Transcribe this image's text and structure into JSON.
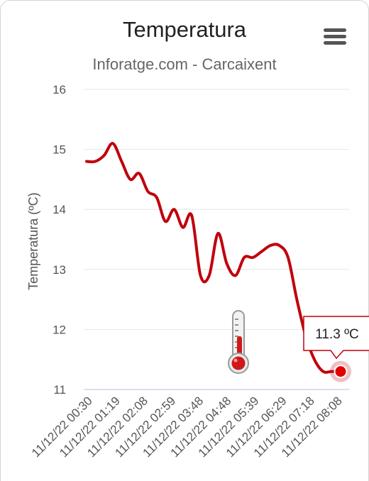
{
  "chart_data": {
    "type": "line",
    "title": "Temperatura",
    "subtitle": "Inforatge.com - Carcaixent",
    "ylabel": "Temperatura (ºC)",
    "xlabel": "",
    "ylim": [
      11,
      16
    ],
    "yticks": [
      "16",
      "15",
      "14",
      "13",
      "12",
      "11"
    ],
    "xticks": [
      "11/12/22 00:30",
      "11/12/22 01:19",
      "11/12/22 02:08",
      "11/12/22 02:59",
      "11/12/22 03:48",
      "11/12/22 04:48",
      "11/12/22 05:39",
      "11/12/22 06:29",
      "11/12/22 07:18",
      "11/12/22 08:08"
    ],
    "grid": true,
    "series": [
      {
        "color": "#c0000c",
        "values": [
          14.8,
          14.8,
          14.9,
          15.1,
          14.8,
          14.5,
          14.6,
          14.3,
          14.2,
          13.8,
          14.0,
          13.7,
          13.9,
          12.9,
          12.9,
          13.6,
          13.1,
          12.9,
          13.2,
          13.2,
          13.3,
          13.4,
          13.4,
          13.2,
          12.5,
          11.9,
          11.5,
          11.3,
          11.3,
          11.3
        ]
      }
    ],
    "tooltip": {
      "text": "11.3 ºC"
    }
  }
}
